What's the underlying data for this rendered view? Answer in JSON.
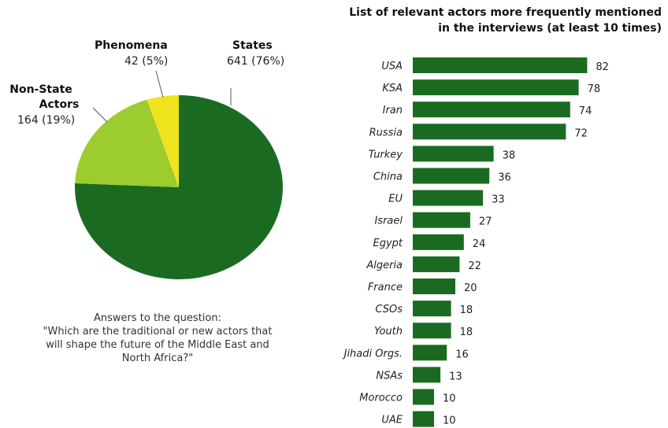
{
  "chart_data": [
    {
      "type": "pie",
      "slices": [
        {
          "label": "States",
          "value": 641,
          "text": "641 (76%)",
          "color": "#1a6b21"
        },
        {
          "label": "Non-State Actors",
          "value": 164,
          "text": "164 (19%)",
          "color": "#9ccc2e"
        },
        {
          "label": "Phenomena",
          "value": 42,
          "text": "42 (5%)",
          "color": "#f0e41f"
        }
      ],
      "caption": [
        "Answers to the question:",
        "\"Which are the traditional or new actors that",
        "will shape the future of the Middle East and",
        "North Africa?\""
      ]
    },
    {
      "type": "bar",
      "orientation": "horizontal",
      "title": [
        "List of relevant actors more frequently mentioned",
        "in the interviews (at least 10 times)"
      ],
      "categories": [
        "USA",
        "KSA",
        "Iran",
        "Russia",
        "Turkey",
        "China",
        "EU",
        "Israel",
        "Egypt",
        "Algeria",
        "France",
        "CSOs",
        "Youth",
        "Jihadi Orgs.",
        "NSAs",
        "Morocco",
        "UAE"
      ],
      "values": [
        82,
        78,
        74,
        72,
        38,
        36,
        33,
        27,
        24,
        22,
        20,
        18,
        18,
        16,
        13,
        10,
        10
      ],
      "bar_color": "#1a6b21"
    }
  ]
}
